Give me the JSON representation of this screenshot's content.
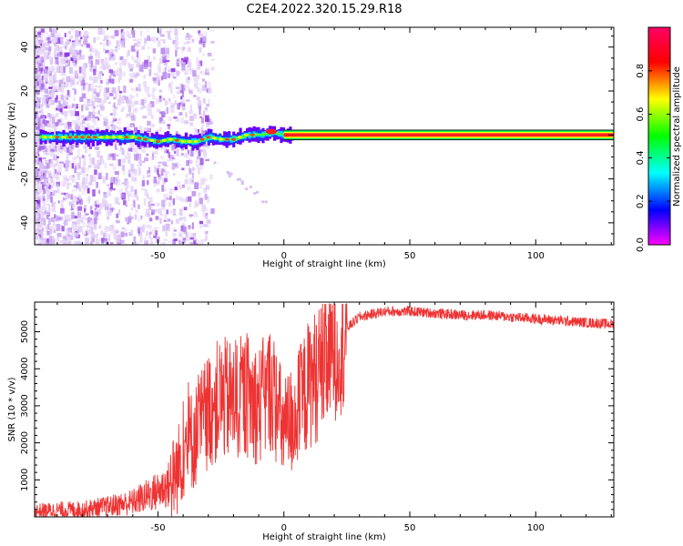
{
  "figure": {
    "title": "C2E4.2022.320.15.29.R18"
  },
  "chart_data": [
    {
      "type": "heatmap",
      "xlabel": "Height of straight line (km)",
      "ylabel": "Frequency (Hz)",
      "xlim": [
        -99,
        131
      ],
      "ylim": [
        -50,
        49
      ],
      "xticks": [
        -50,
        0,
        50,
        100
      ],
      "yticks": [
        -40,
        -20,
        0,
        20,
        40
      ],
      "colorbar": {
        "label": "Normalized spectral amplitude",
        "range": [
          0,
          1
        ],
        "ticks": [
          0.0,
          0.2,
          0.4,
          0.6,
          0.8
        ],
        "colormap": [
          "#ff00ff",
          "#0000ff",
          "#00ffff",
          "#00ff00",
          "#ffff00",
          "#ff0000",
          "#ff0066"
        ]
      },
      "ridge": [
        {
          "x": -97,
          "y": -1
        },
        {
          "x": -90,
          "y": -1
        },
        {
          "x": -85,
          "y": -1
        },
        {
          "x": -80,
          "y": -1
        },
        {
          "x": -75,
          "y": -1
        },
        {
          "x": -70,
          "y": -1
        },
        {
          "x": -65,
          "y": -1
        },
        {
          "x": -60,
          "y": -1
        },
        {
          "x": -55,
          "y": -2
        },
        {
          "x": -50,
          "y": -3
        },
        {
          "x": -45,
          "y": -2
        },
        {
          "x": -40,
          "y": -3
        },
        {
          "x": -35,
          "y": -3
        },
        {
          "x": -30,
          "y": -1
        },
        {
          "x": -25,
          "y": -2
        },
        {
          "x": -20,
          "y": -2
        },
        {
          "x": -15,
          "y": 0
        },
        {
          "x": -10,
          "y": 0
        },
        {
          "x": -5,
          "y": 1
        },
        {
          "x": 0,
          "y": 0
        },
        {
          "x": 131,
          "y": 0
        }
      ]
    },
    {
      "type": "line",
      "xlabel": "Height of straight line (km)",
      "ylabel": "SNR (10 * v/v)",
      "xlim": [
        -99,
        131
      ],
      "ylim": [
        0,
        5800
      ],
      "xticks": [
        -50,
        0,
        50,
        100
      ],
      "yticks": [
        1000,
        2000,
        3000,
        4000,
        5000
      ],
      "line_color": "#ee3333",
      "series": [
        {
          "x": [
            -99,
            -90,
            -80,
            -70,
            -60,
            -55,
            -50,
            -45,
            -42,
            -40,
            -35,
            -30,
            -25,
            -20,
            -15,
            -10,
            -5,
            0,
            5,
            10,
            15,
            20,
            25,
            30,
            40,
            50,
            60,
            70,
            80,
            90,
            100,
            110,
            120,
            131
          ],
          "values": [
            150,
            180,
            200,
            280,
            400,
            550,
            700,
            900,
            1300,
            1800,
            2200,
            2900,
            3200,
            3100,
            3300,
            3000,
            3500,
            2300,
            2800,
            3600,
            4000,
            4600,
            5100,
            5400,
            5550,
            5550,
            5500,
            5450,
            5450,
            5400,
            5350,
            5300,
            5250,
            5200
          ]
        }
      ]
    }
  ]
}
